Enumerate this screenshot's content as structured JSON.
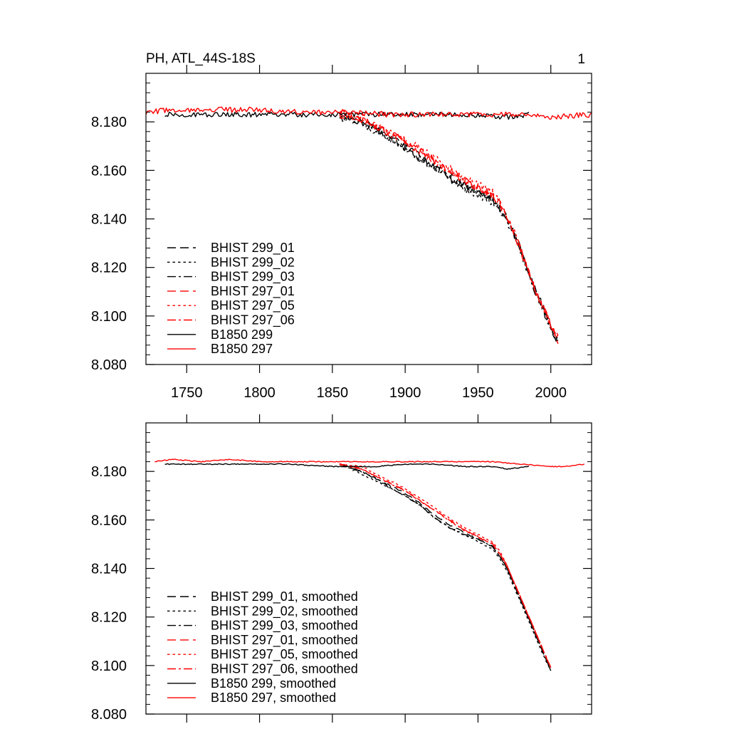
{
  "page_number": "1",
  "colors": {
    "black": "#000000",
    "red": "#ff0000"
  },
  "chart_data": [
    {
      "type": "line",
      "title": "PH, ATL_44S-18S",
      "xlabel": "",
      "ylabel": "",
      "xlim": [
        1722,
        2028
      ],
      "ylim": [
        8.08,
        8.2
      ],
      "xticks": [
        1750,
        1800,
        1850,
        1900,
        1950,
        2000
      ],
      "xtick_labels": [
        "1750",
        "1800",
        "1850",
        "1900",
        "1950",
        "2000"
      ],
      "yticks": [
        8.08,
        8.1,
        8.12,
        8.14,
        8.16,
        8.18
      ],
      "ytick_labels": [
        "8.080",
        "8.100",
        "8.120",
        "8.140",
        "8.160",
        "8.180"
      ],
      "legend_position": "bottom-left",
      "series": [
        {
          "name": "BHIST 299_01",
          "color": "#000000",
          "dash": "dash",
          "noise": 0.0016,
          "x": [
            1855,
            1870,
            1880,
            1890,
            1900,
            1910,
            1920,
            1930,
            1940,
            1950,
            1960,
            1965,
            1970,
            1975,
            1980,
            1985,
            1990,
            1995,
            2000,
            2005
          ],
          "y": [
            8.182,
            8.18,
            8.177,
            8.174,
            8.17,
            8.166,
            8.162,
            8.158,
            8.154,
            8.151,
            8.148,
            8.145,
            8.14,
            8.134,
            8.126,
            8.118,
            8.11,
            8.103,
            8.095,
            8.089
          ]
        },
        {
          "name": "BHIST 299_02",
          "color": "#000000",
          "dash": "dot",
          "noise": 0.0016,
          "x": [
            1855,
            1870,
            1880,
            1890,
            1900,
            1910,
            1920,
            1930,
            1940,
            1950,
            1960,
            1965,
            1970,
            1975,
            1980,
            1985,
            1990,
            1995,
            2000,
            2005
          ],
          "y": [
            8.182,
            8.179,
            8.176,
            8.173,
            8.169,
            8.165,
            8.161,
            8.157,
            8.153,
            8.15,
            8.147,
            8.144,
            8.139,
            8.133,
            8.125,
            8.117,
            8.109,
            8.102,
            8.095,
            8.09
          ]
        },
        {
          "name": "BHIST 299_03",
          "color": "#000000",
          "dash": "dashdot",
          "noise": 0.0016,
          "x": [
            1855,
            1870,
            1880,
            1890,
            1900,
            1910,
            1920,
            1930,
            1940,
            1950,
            1960,
            1965,
            1970,
            1975,
            1980,
            1985,
            1990,
            1995,
            2000,
            2005
          ],
          "y": [
            8.183,
            8.18,
            8.177,
            8.173,
            8.169,
            8.165,
            8.161,
            8.157,
            8.153,
            8.151,
            8.148,
            8.144,
            8.139,
            8.133,
            8.125,
            8.117,
            8.109,
            8.102,
            8.095,
            8.09
          ]
        },
        {
          "name": "BHIST 297_01",
          "color": "#ff0000",
          "dash": "dash",
          "noise": 0.0016,
          "x": [
            1855,
            1870,
            1880,
            1890,
            1900,
            1910,
            1920,
            1930,
            1940,
            1950,
            1960,
            1965,
            1970,
            1975,
            1980,
            1985,
            1990,
            1995,
            2000,
            2005
          ],
          "y": [
            8.183,
            8.181,
            8.178,
            8.175,
            8.172,
            8.168,
            8.164,
            8.16,
            8.156,
            8.153,
            8.15,
            8.146,
            8.141,
            8.134,
            8.126,
            8.118,
            8.11,
            8.103,
            8.096,
            8.09
          ]
        },
        {
          "name": "BHIST 297_05",
          "color": "#ff0000",
          "dash": "dot",
          "noise": 0.0016,
          "x": [
            1855,
            1870,
            1880,
            1890,
            1900,
            1910,
            1920,
            1930,
            1940,
            1950,
            1960,
            1965,
            1970,
            1975,
            1980,
            1985,
            1990,
            1995,
            2000,
            2005
          ],
          "y": [
            8.184,
            8.182,
            8.179,
            8.176,
            8.173,
            8.169,
            8.165,
            8.161,
            8.157,
            8.154,
            8.151,
            8.147,
            8.141,
            8.134,
            8.126,
            8.118,
            8.11,
            8.103,
            8.096,
            8.091
          ]
        },
        {
          "name": "BHIST 297_06",
          "color": "#ff0000",
          "dash": "dashdot",
          "noise": 0.0016,
          "x": [
            1855,
            1870,
            1880,
            1890,
            1900,
            1910,
            1920,
            1930,
            1940,
            1950,
            1960,
            1965,
            1970,
            1975,
            1980,
            1985,
            1990,
            1995,
            2000,
            2005
          ],
          "y": [
            8.183,
            8.181,
            8.178,
            8.175,
            8.172,
            8.168,
            8.164,
            8.16,
            8.156,
            8.153,
            8.15,
            8.146,
            8.141,
            8.134,
            8.126,
            8.118,
            8.11,
            8.103,
            8.096,
            8.091
          ]
        },
        {
          "name": "B1850 299",
          "color": "#000000",
          "dash": "solid",
          "noise": 0.001,
          "x": [
            1735,
            1760,
            1790,
            1820,
            1850,
            1880,
            1910,
            1940,
            1970,
            1985
          ],
          "y": [
            8.183,
            8.183,
            8.183,
            8.183,
            8.183,
            8.183,
            8.183,
            8.183,
            8.182,
            8.183
          ]
        },
        {
          "name": "B1850 297",
          "color": "#ff0000",
          "dash": "solid",
          "noise": 0.0011,
          "x": [
            1722,
            1740,
            1770,
            1800,
            1830,
            1860,
            1890,
            1920,
            1950,
            1980,
            2000,
            2028
          ],
          "y": [
            8.184,
            8.185,
            8.185,
            8.185,
            8.184,
            8.184,
            8.183,
            8.183,
            8.183,
            8.183,
            8.182,
            8.183
          ]
        }
      ]
    },
    {
      "type": "line",
      "title": "",
      "xlabel": "",
      "ylabel": "",
      "xlim": [
        1722,
        2028
      ],
      "ylim": [
        8.08,
        8.2
      ],
      "xticks": [
        1750,
        1800,
        1850,
        1900,
        1950,
        2000
      ],
      "xtick_labels": [],
      "yticks": [
        8.08,
        8.1,
        8.12,
        8.14,
        8.16,
        8.18
      ],
      "ytick_labels": [
        "8.080",
        "8.100",
        "8.120",
        "8.140",
        "8.160",
        "8.180"
      ],
      "legend_position": "bottom-left",
      "series": [
        {
          "name": "BHIST 299_01, smoothed",
          "color": "#000000",
          "dash": "dash",
          "noise": 0.0003,
          "x": [
            1855,
            1870,
            1880,
            1890,
            1900,
            1910,
            1920,
            1930,
            1940,
            1950,
            1960,
            1965,
            1970,
            1975,
            1980,
            1985,
            1990,
            1995,
            2000
          ],
          "y": [
            8.183,
            8.18,
            8.177,
            8.174,
            8.171,
            8.167,
            8.162,
            8.158,
            8.155,
            8.152,
            8.149,
            8.145,
            8.14,
            8.133,
            8.126,
            8.119,
            8.112,
            8.105,
            8.098
          ]
        },
        {
          "name": "BHIST 299_02, smoothed",
          "color": "#000000",
          "dash": "dot",
          "noise": 0.0003,
          "x": [
            1855,
            1870,
            1880,
            1890,
            1900,
            1910,
            1920,
            1930,
            1940,
            1950,
            1960,
            1965,
            1970,
            1975,
            1980,
            1985,
            1990,
            1995,
            2000
          ],
          "y": [
            8.183,
            8.179,
            8.176,
            8.173,
            8.17,
            8.166,
            8.161,
            8.157,
            8.154,
            8.151,
            8.148,
            8.144,
            8.139,
            8.132,
            8.125,
            8.118,
            8.111,
            8.104,
            8.098
          ]
        },
        {
          "name": "BHIST 299_03, smoothed",
          "color": "#000000",
          "dash": "dashdot",
          "noise": 0.0003,
          "x": [
            1855,
            1870,
            1880,
            1890,
            1900,
            1910,
            1920,
            1930,
            1940,
            1950,
            1960,
            1965,
            1970,
            1975,
            1980,
            1985,
            1990,
            1995,
            2000
          ],
          "y": [
            8.183,
            8.18,
            8.177,
            8.173,
            8.17,
            8.166,
            8.161,
            8.157,
            8.154,
            8.152,
            8.149,
            8.145,
            8.14,
            8.133,
            8.126,
            8.119,
            8.112,
            8.105,
            8.098
          ]
        },
        {
          "name": "BHIST 297_01, smoothed",
          "color": "#ff0000",
          "dash": "dash",
          "noise": 0.0003,
          "x": [
            1855,
            1870,
            1880,
            1890,
            1900,
            1910,
            1920,
            1930,
            1940,
            1950,
            1960,
            1965,
            1970,
            1975,
            1980,
            1985,
            1990,
            1995,
            2000
          ],
          "y": [
            8.183,
            8.181,
            8.178,
            8.175,
            8.172,
            8.168,
            8.164,
            8.16,
            8.156,
            8.153,
            8.15,
            8.146,
            8.141,
            8.134,
            8.127,
            8.12,
            8.113,
            8.106,
            8.099
          ]
        },
        {
          "name": "BHIST 297_05, smoothed",
          "color": "#ff0000",
          "dash": "dot",
          "noise": 0.0003,
          "x": [
            1855,
            1870,
            1880,
            1890,
            1900,
            1910,
            1920,
            1930,
            1940,
            1950,
            1960,
            1965,
            1970,
            1975,
            1980,
            1985,
            1990,
            1995,
            2000
          ],
          "y": [
            8.183,
            8.182,
            8.179,
            8.176,
            8.173,
            8.169,
            8.165,
            8.161,
            8.157,
            8.154,
            8.151,
            8.147,
            8.141,
            8.134,
            8.127,
            8.12,
            8.113,
            8.106,
            8.099
          ]
        },
        {
          "name": "BHIST 297_06, smoothed",
          "color": "#ff0000",
          "dash": "dashdot",
          "noise": 0.0003,
          "x": [
            1855,
            1870,
            1880,
            1890,
            1900,
            1910,
            1920,
            1930,
            1940,
            1950,
            1960,
            1965,
            1970,
            1975,
            1980,
            1985,
            1990,
            1995,
            2000
          ],
          "y": [
            8.183,
            8.181,
            8.178,
            8.175,
            8.172,
            8.168,
            8.164,
            8.16,
            8.156,
            8.153,
            8.15,
            8.146,
            8.141,
            8.134,
            8.127,
            8.12,
            8.113,
            8.106,
            8.099
          ]
        },
        {
          "name": "B1850 299, smoothed",
          "color": "#000000",
          "dash": "solid",
          "noise": 0.0002,
          "x": [
            1735,
            1760,
            1790,
            1820,
            1850,
            1880,
            1900,
            1920,
            1940,
            1960,
            1970,
            1985
          ],
          "y": [
            8.183,
            8.183,
            8.183,
            8.183,
            8.182,
            8.182,
            8.183,
            8.183,
            8.182,
            8.182,
            8.181,
            8.182
          ]
        },
        {
          "name": "B1850 297, smoothed",
          "color": "#ff0000",
          "dash": "solid",
          "noise": 0.0002,
          "x": [
            1728,
            1740,
            1760,
            1780,
            1800,
            1820,
            1840,
            1860,
            1880,
            1900,
            1920,
            1940,
            1960,
            1980,
            2000,
            2010,
            2023
          ],
          "y": [
            8.184,
            8.185,
            8.184,
            8.185,
            8.184,
            8.184,
            8.184,
            8.184,
            8.184,
            8.184,
            8.184,
            8.184,
            8.184,
            8.183,
            8.182,
            8.182,
            8.183
          ]
        }
      ]
    }
  ]
}
